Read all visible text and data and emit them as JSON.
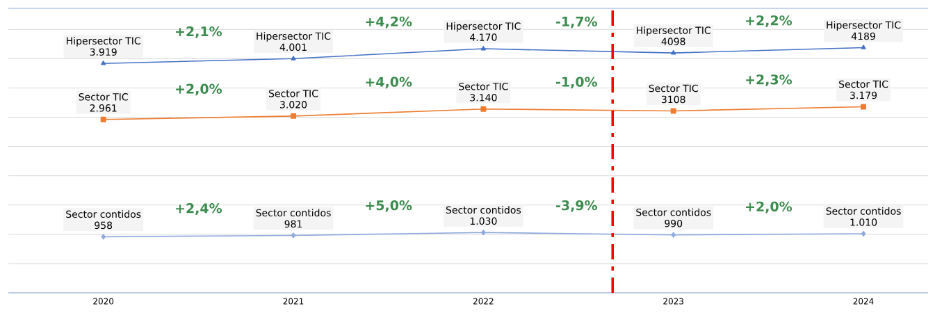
{
  "chart_data": {
    "type": "line",
    "x": [
      2020,
      2021,
      2022,
      2023,
      2024
    ],
    "xlim": [
      2019.5,
      2024.34
    ],
    "xticks": [
      2020,
      2021,
      2022,
      2023,
      2024
    ],
    "ylim": [
      0,
      4860
    ],
    "yticks": [
      {
        "value": 0,
        "label": null
      },
      {
        "value": 500,
        "label": null
      },
      {
        "value": 1000,
        "label": null
      },
      {
        "value": 1500,
        "label": null
      },
      {
        "value": 2000,
        "label": null
      },
      {
        "value": 2500,
        "label": null
      },
      {
        "value": 3000,
        "label": null
      },
      {
        "value": 3500,
        "label": null
      },
      {
        "value": 4000,
        "label": null
      },
      {
        "value": 4500,
        "label": null
      }
    ],
    "tick_labels": "x",
    "grid": "y",
    "line_style": "solid",
    "series": [
      {
        "name": "Hipersector TIC",
        "color": "#4472c4",
        "marker": "triangle",
        "values": [
          3919,
          4001,
          4170,
          4098,
          4189
        ],
        "value_labels": [
          "3.919",
          "4.001",
          "4.170",
          "4098",
          "4189"
        ]
      },
      {
        "name": "Sector TIC",
        "color": "#ed7d31",
        "marker": "square",
        "values": [
          2961,
          3020,
          3140,
          3108,
          3179
        ],
        "value_labels": [
          "2.961",
          "3.020",
          "3.140",
          "3108",
          "3.179"
        ]
      },
      {
        "name": "Sector contidos",
        "color": "#8faadc",
        "marker": "diamond",
        "values": [
          958,
          981,
          1030,
          990,
          1010
        ],
        "value_labels": [
          "958",
          "981",
          "1.030",
          "990",
          "1.010"
        ]
      }
    ],
    "ref_lines": [
      {
        "axis": "x",
        "value": 2022.68,
        "color": "#ff0000",
        "line_style": "dashed"
      }
    ],
    "annotations": [
      "+2,1%",
      "+4,2%",
      "-1,7%",
      "+2,2%",
      "+2,0%",
      "+4,0%",
      "-1,0%",
      "+2,3%",
      "+2,4%",
      "+5,0%",
      "-3,9%",
      "+2,0%"
    ]
  }
}
